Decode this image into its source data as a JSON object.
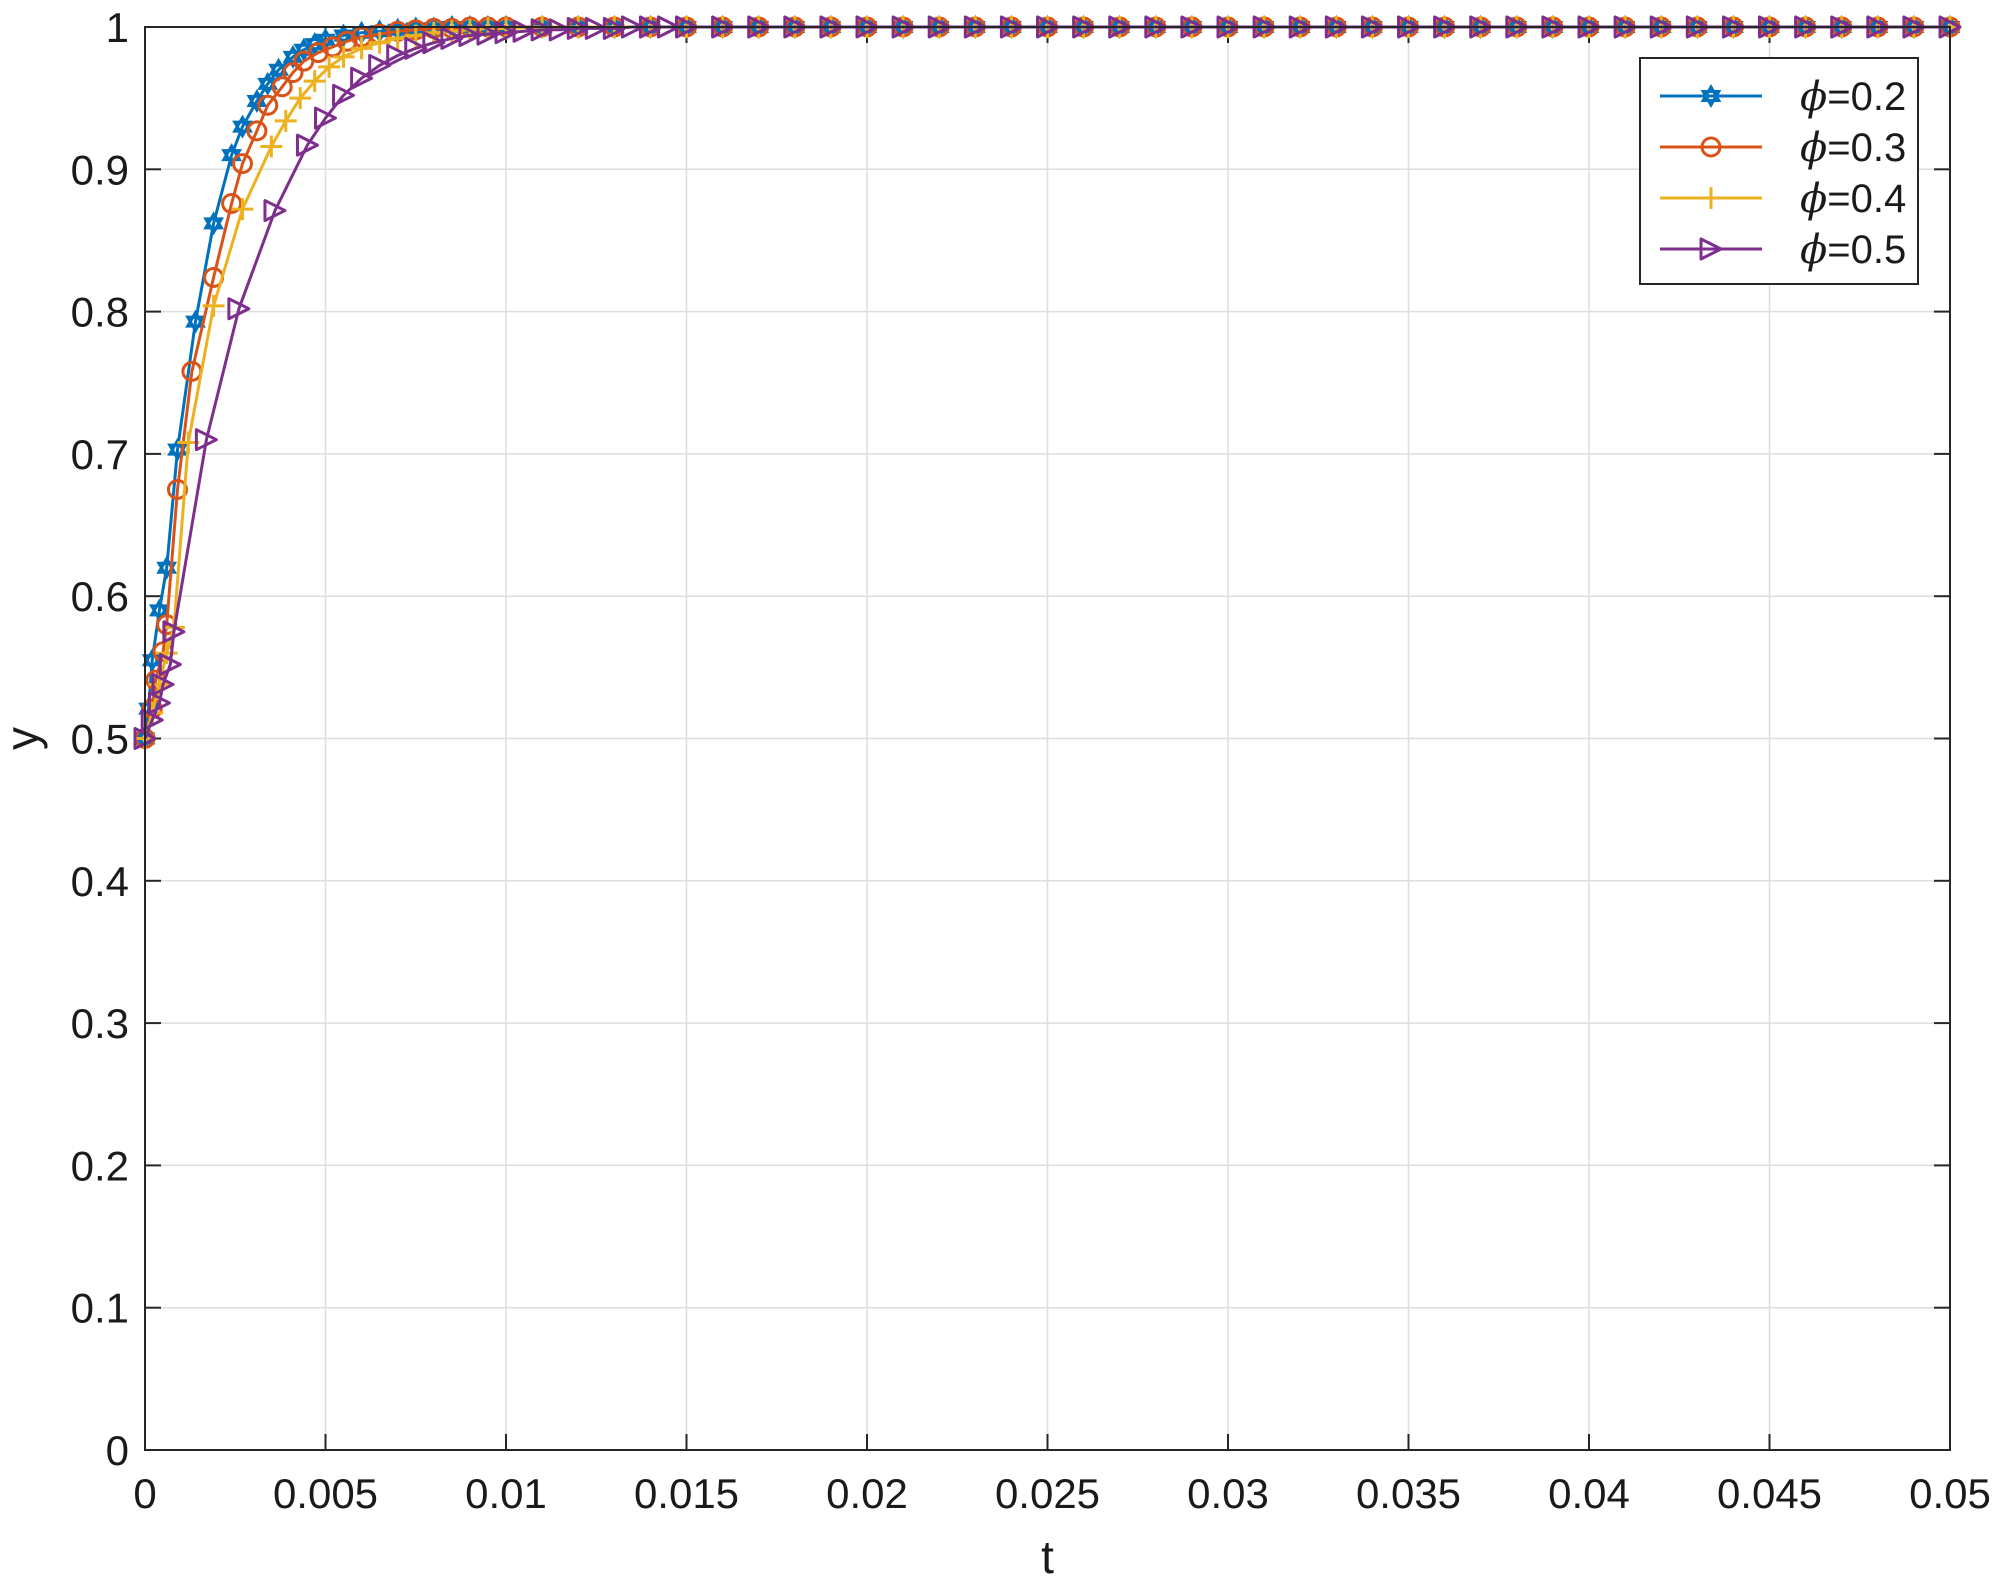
{
  "chart_data": {
    "type": "line",
    "xlabel": "t",
    "ylabel": "y",
    "xlim": [
      0,
      0.05
    ],
    "ylim": [
      0,
      1
    ],
    "xticks": [
      0,
      0.005,
      0.01,
      0.015,
      0.02,
      0.025,
      0.03,
      0.035,
      0.04,
      0.045,
      0.05
    ],
    "xtick_labels": [
      "0",
      "0.005",
      "0.01",
      "0.015",
      "0.02",
      "0.025",
      "0.03",
      "0.035",
      "0.04",
      "0.045",
      "0.05"
    ],
    "yticks": [
      0,
      0.1,
      0.2,
      0.3,
      0.4,
      0.5,
      0.6,
      0.7,
      0.8,
      0.9,
      1
    ],
    "ytick_labels": [
      "0",
      "0.1",
      "0.2",
      "0.3",
      "0.4",
      "0.5",
      "0.6",
      "0.7",
      "0.8",
      "0.9",
      "1"
    ],
    "grid": true,
    "legend_position": "top-right",
    "series": [
      {
        "name": "ϕ=0.2",
        "legend_value": "=0.2",
        "color": "#0072BD",
        "marker": "hexagram",
        "x": [
          0,
          0.0001,
          0.0002,
          0.0004,
          0.0006,
          0.0009,
          0.0014,
          0.0019,
          0.0024,
          0.0027,
          0.0031,
          0.0034,
          0.0037,
          0.0041,
          0.0044,
          0.0047,
          0.005,
          0.0055,
          0.006,
          0.0065,
          0.007,
          0.0075,
          0.008,
          0.0085,
          0.009,
          0.0095,
          0.01,
          0.011,
          0.012,
          0.013,
          0.014,
          0.015,
          0.016,
          0.017,
          0.018,
          0.019,
          0.02,
          0.021,
          0.022,
          0.023,
          0.024,
          0.025,
          0.026,
          0.027,
          0.028,
          0.029,
          0.03,
          0.031,
          0.032,
          0.033,
          0.034,
          0.035,
          0.036,
          0.037,
          0.038,
          0.039,
          0.04,
          0.041,
          0.042,
          0.043,
          0.044,
          0.045,
          0.046,
          0.047,
          0.048,
          0.049,
          0.05
        ],
        "y": [
          0.5,
          0.521,
          0.555,
          0.59,
          0.62,
          0.703,
          0.793,
          0.862,
          0.91,
          0.93,
          0.948,
          0.96,
          0.97,
          0.979,
          0.984,
          0.988,
          0.991,
          0.994,
          0.996,
          0.997,
          0.998,
          0.999,
          0.999,
          1,
          1,
          1,
          1,
          1,
          1,
          1,
          1,
          1,
          1,
          1,
          1,
          1,
          1,
          1,
          1,
          1,
          1,
          1,
          1,
          1,
          1,
          1,
          1,
          1,
          1,
          1,
          1,
          1,
          1,
          1,
          1,
          1,
          1,
          1,
          1,
          1,
          1,
          1,
          1,
          1,
          1,
          1,
          1
        ]
      },
      {
        "name": "ϕ=0.3",
        "legend_value": "=0.3",
        "color": "#D95319",
        "marker": "circle",
        "x": [
          0,
          0.0002,
          0.0003,
          0.0005,
          0.0006,
          0.0009,
          0.0013,
          0.0019,
          0.0024,
          0.0027,
          0.0031,
          0.0034,
          0.0038,
          0.0041,
          0.0044,
          0.0048,
          0.0052,
          0.0056,
          0.006,
          0.0065,
          0.007,
          0.0075,
          0.008,
          0.0085,
          0.009,
          0.0095,
          0.01,
          0.011,
          0.012,
          0.013,
          0.014,
          0.015,
          0.016,
          0.017,
          0.018,
          0.019,
          0.02,
          0.021,
          0.022,
          0.023,
          0.024,
          0.025,
          0.026,
          0.027,
          0.028,
          0.029,
          0.03,
          0.031,
          0.032,
          0.033,
          0.034,
          0.035,
          0.036,
          0.037,
          0.038,
          0.039,
          0.04,
          0.041,
          0.042,
          0.043,
          0.044,
          0.045,
          0.046,
          0.047,
          0.048,
          0.049,
          0.05
        ],
        "y": [
          0.5,
          0.521,
          0.541,
          0.561,
          0.58,
          0.675,
          0.758,
          0.824,
          0.876,
          0.904,
          0.927,
          0.945,
          0.958,
          0.968,
          0.976,
          0.982,
          0.986,
          0.99,
          0.993,
          0.995,
          0.997,
          0.998,
          0.999,
          0.999,
          1,
          1,
          1,
          1,
          1,
          1,
          1,
          1,
          1,
          1,
          1,
          1,
          1,
          1,
          1,
          1,
          1,
          1,
          1,
          1,
          1,
          1,
          1,
          1,
          1,
          1,
          1,
          1,
          1,
          1,
          1,
          1,
          1,
          1,
          1,
          1,
          1,
          1,
          1,
          1,
          1,
          1,
          1
        ]
      },
      {
        "name": "ϕ=0.4",
        "legend_value": "=0.4",
        "color": "#EDB120",
        "marker": "plus",
        "x": [
          0,
          0.0002,
          0.0004,
          0.0006,
          0.0008,
          0.0012,
          0.0019,
          0.0027,
          0.0035,
          0.0039,
          0.0043,
          0.0047,
          0.0051,
          0.0055,
          0.006,
          0.0065,
          0.007,
          0.0075,
          0.008,
          0.0085,
          0.009,
          0.0095,
          0.01,
          0.011,
          0.012,
          0.013,
          0.014,
          0.015,
          0.016,
          0.017,
          0.018,
          0.019,
          0.02,
          0.021,
          0.022,
          0.023,
          0.024,
          0.025,
          0.026,
          0.027,
          0.028,
          0.029,
          0.03,
          0.031,
          0.032,
          0.033,
          0.034,
          0.035,
          0.036,
          0.037,
          0.038,
          0.039,
          0.04,
          0.041,
          0.042,
          0.043,
          0.044,
          0.045,
          0.046,
          0.047,
          0.048,
          0.049,
          0.05
        ],
        "y": [
          0.5,
          0.518,
          0.538,
          0.56,
          0.578,
          0.708,
          0.804,
          0.872,
          0.916,
          0.934,
          0.95,
          0.962,
          0.972,
          0.979,
          0.985,
          0.989,
          0.992,
          0.994,
          0.996,
          0.997,
          0.998,
          0.999,
          0.999,
          1,
          1,
          1,
          1,
          1,
          1,
          1,
          1,
          1,
          1,
          1,
          1,
          1,
          1,
          1,
          1,
          1,
          1,
          1,
          1,
          1,
          1,
          1,
          1,
          1,
          1,
          1,
          1,
          1,
          1,
          1,
          1,
          1,
          1,
          1,
          1,
          1,
          1,
          1,
          1
        ]
      },
      {
        "name": "ϕ=0.5",
        "legend_value": "=0.5",
        "color": "#7E2F8E",
        "marker": "triangle-right",
        "x": [
          0,
          0.0002,
          0.0004,
          0.0005,
          0.0007,
          0.0008,
          0.0017,
          0.0026,
          0.0036,
          0.0045,
          0.005,
          0.0055,
          0.006,
          0.0065,
          0.007,
          0.0075,
          0.008,
          0.0085,
          0.009,
          0.0095,
          0.01,
          0.0105,
          0.011,
          0.0115,
          0.012,
          0.0125,
          0.013,
          0.0135,
          0.014,
          0.0145,
          0.015,
          0.016,
          0.017,
          0.018,
          0.019,
          0.02,
          0.021,
          0.022,
          0.023,
          0.024,
          0.025,
          0.026,
          0.027,
          0.028,
          0.029,
          0.03,
          0.031,
          0.032,
          0.033,
          0.034,
          0.035,
          0.036,
          0.037,
          0.038,
          0.039,
          0.04,
          0.041,
          0.042,
          0.043,
          0.044,
          0.045,
          0.046,
          0.047,
          0.048,
          0.049,
          0.05
        ],
        "y": [
          0.5,
          0.513,
          0.525,
          0.538,
          0.552,
          0.575,
          0.71,
          0.802,
          0.871,
          0.917,
          0.936,
          0.952,
          0.964,
          0.973,
          0.98,
          0.985,
          0.989,
          0.992,
          0.994,
          0.995,
          0.996,
          0.997,
          0.998,
          0.998,
          0.999,
          0.999,
          0.999,
          1,
          1,
          1,
          1,
          1,
          1,
          1,
          1,
          1,
          1,
          1,
          1,
          1,
          1,
          1,
          1,
          1,
          1,
          1,
          1,
          1,
          1,
          1,
          1,
          1,
          1,
          1,
          1,
          1,
          1,
          1,
          1,
          1,
          1,
          1,
          1,
          1,
          1,
          1
        ]
      }
    ]
  }
}
